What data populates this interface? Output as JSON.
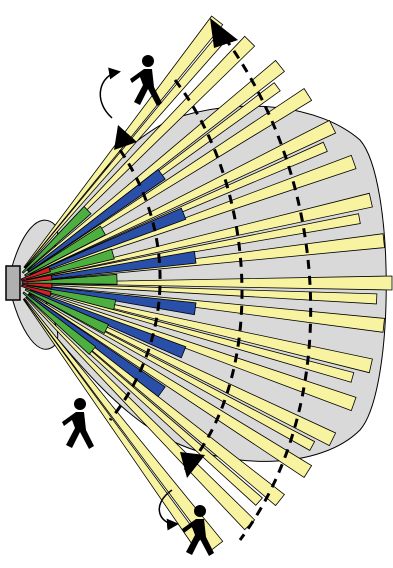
{
  "diagram": {
    "type": "motion-sensor-detection-pattern",
    "zones": [
      {
        "name": "short-range",
        "color": "#d41f26"
      },
      {
        "name": "mid-range",
        "color": "#4caf3f"
      },
      {
        "name": "long-range",
        "color": "#2a4fa8"
      },
      {
        "name": "far-range",
        "color": "#f7f3a0"
      }
    ],
    "coverage_color": "#d9d9d9",
    "outline_color": "#000000",
    "icons": [
      "walking-person-icon",
      "arrow-icon"
    ],
    "walkers": 3,
    "dashed_arcs": 3
  }
}
